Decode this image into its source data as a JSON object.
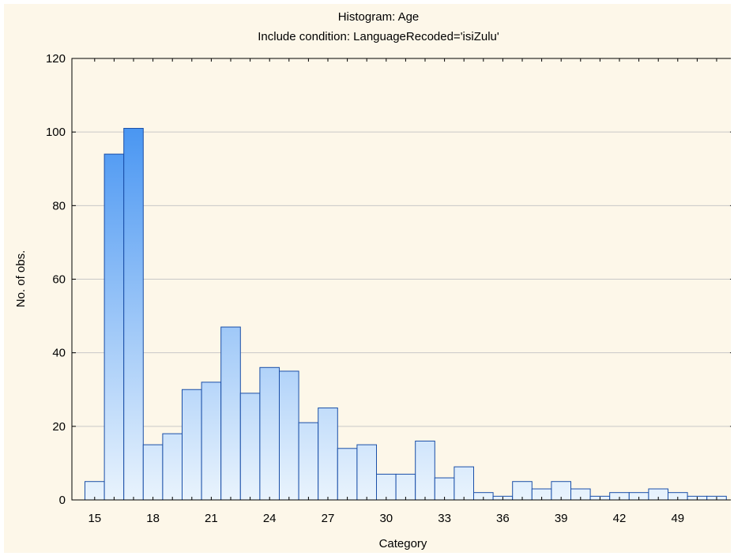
{
  "chart_data": {
    "type": "bar",
    "title": "Histogram: Age",
    "subtitle": "Include condition: LanguageRecoded='isiZulu'",
    "xlabel": "Category",
    "ylabel": "No. of obs.",
    "ylim": [
      0,
      120
    ],
    "yticks": [
      "0",
      "20",
      "40",
      "60",
      "80",
      "100",
      "120"
    ],
    "xtick_labels": [
      "15",
      "18",
      "21",
      "24",
      "27",
      "30",
      "33",
      "36",
      "39",
      "42",
      "49"
    ],
    "grid": "horizontal",
    "values": [
      5,
      94,
      101,
      15,
      18,
      30,
      32,
      47,
      29,
      36,
      35,
      21,
      25,
      14,
      15,
      7,
      7,
      16,
      6,
      9,
      2,
      1,
      5,
      3,
      5,
      3,
      1,
      2,
      2,
      3,
      2,
      1,
      1
    ],
    "colors": {
      "background": "#fdf7e9",
      "bar_edge": "#1a4fa8",
      "bar_top": "#2e86f0",
      "bar_bottom": "#eaf4fd",
      "grid": "#c8c8c8"
    }
  }
}
